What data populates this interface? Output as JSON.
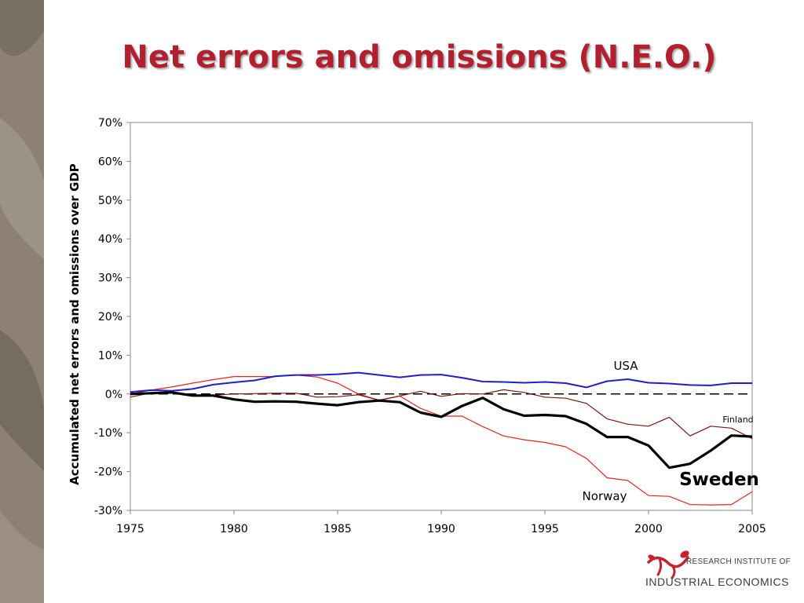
{
  "slide": {
    "title": "Net errors and omissions (N.E.O.)"
  },
  "logo": {
    "line1": "RESEARCH INSTITUTE OF",
    "line2": "INDUSTRIAL ECONOMICS"
  },
  "colors": {
    "title": "#b0202e",
    "side_band": "#8c8174",
    "usa": "#1f1fd0",
    "finland": "#7a1410",
    "norway": "#e8231e",
    "sweden": "#000000",
    "logo_red": "#c52330"
  },
  "chart_data": {
    "type": "line",
    "title": "",
    "xlabel": "",
    "ylabel": "Accumulated net errors and omissions over GDP",
    "x": [
      1975,
      1976,
      1977,
      1978,
      1979,
      1980,
      1981,
      1982,
      1983,
      1984,
      1985,
      1986,
      1987,
      1988,
      1989,
      1990,
      1991,
      1992,
      1993,
      1994,
      1995,
      1996,
      1997,
      1998,
      1999,
      2000,
      2001,
      2002,
      2003,
      2004,
      2005
    ],
    "xlim": [
      1975,
      2005
    ],
    "ylim": [
      -30,
      70
    ],
    "x_ticks": [
      "1975",
      "1980",
      "1985",
      "1990",
      "1995",
      "2000",
      "2005"
    ],
    "y_ticks": [
      "70%",
      "60%",
      "50%",
      "40%",
      "30%",
      "20%",
      "10%",
      "0%",
      "-10%",
      "-20%",
      "-30%"
    ],
    "reference_line": {
      "y": 0,
      "style": "dashed"
    },
    "grid": false,
    "series": [
      {
        "name": "USA",
        "key": "usa",
        "values": [
          0.5,
          1.0,
          0.8,
          1.3,
          2.4,
          3.0,
          3.5,
          4.6,
          4.9,
          4.9,
          5.1,
          5.5,
          4.9,
          4.3,
          4.9,
          5.0,
          4.2,
          3.2,
          3.1,
          2.9,
          3.1,
          2.8,
          1.7,
          3.3,
          3.8,
          2.9,
          2.7,
          2.3,
          2.2,
          2.8,
          2.8
        ]
      },
      {
        "name": "Finland",
        "key": "finland",
        "values": [
          -0.8,
          0.3,
          0.5,
          -0.3,
          -0.3,
          0.0,
          0.1,
          0.2,
          0.2,
          -0.8,
          -0.7,
          -0.2,
          -1.6,
          -0.5,
          0.7,
          -0.6,
          0.1,
          0.0,
          1.1,
          0.4,
          -0.8,
          -1.1,
          -2.4,
          -6.4,
          -7.8,
          -8.3,
          -6.0,
          -10.8,
          -8.3,
          -8.8,
          -11.5
        ]
      },
      {
        "name": "Norway",
        "key": "norway",
        "values": [
          0.0,
          1.0,
          1.8,
          2.8,
          3.7,
          4.5,
          4.5,
          4.5,
          4.9,
          4.4,
          2.8,
          0.0,
          -1.6,
          -0.5,
          -3.7,
          -5.7,
          -5.7,
          -8.4,
          -10.8,
          -11.8,
          -12.5,
          -13.6,
          -16.6,
          -21.6,
          -22.3,
          -26.2,
          -26.4,
          -28.5,
          -28.6,
          -28.5,
          -25.2
        ]
      },
      {
        "name": "Sweden",
        "key": "sweden",
        "values": [
          0.0,
          0.2,
          0.4,
          -0.4,
          -0.4,
          -1.4,
          -2.0,
          -1.9,
          -2.0,
          -2.5,
          -2.9,
          -2.1,
          -1.7,
          -2.1,
          -4.8,
          -5.9,
          -3.1,
          -1.0,
          -3.9,
          -5.6,
          -5.4,
          -5.7,
          -7.7,
          -11.1,
          -11.1,
          -13.3,
          -19.0,
          -18.0,
          -14.6,
          -10.7,
          -11.0
        ]
      }
    ]
  }
}
